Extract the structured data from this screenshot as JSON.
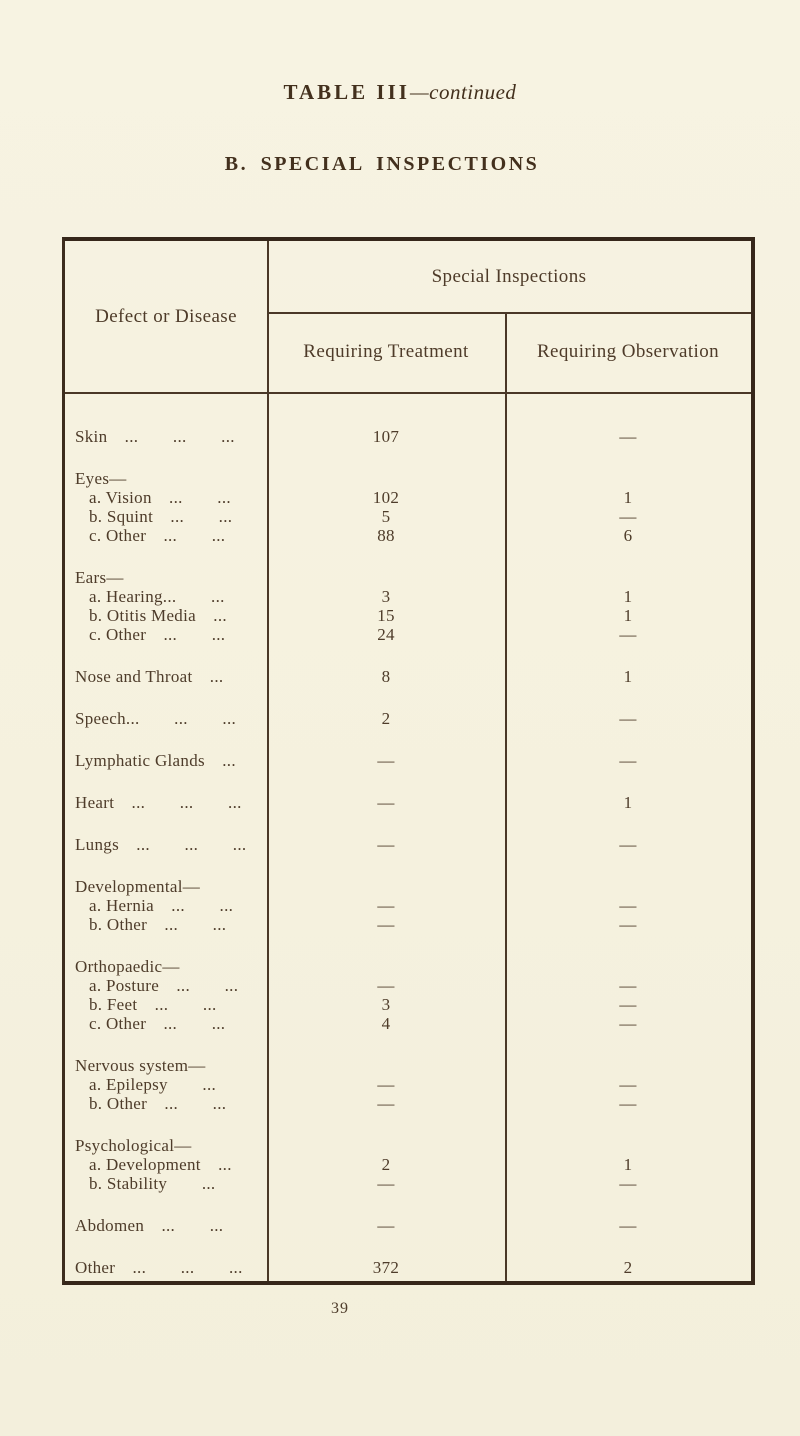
{
  "page": {
    "title_main": "TABLE III",
    "title_suffix": "—continued",
    "section_title": "B. SPECIAL INSPECTIONS",
    "page_number": "39"
  },
  "colors": {
    "paper": "#f6f2e0",
    "ink": "#4b3a28",
    "rule": "#4a3827"
  },
  "table": {
    "col1_header": "Defect or Disease",
    "group_header": "Special Inspections",
    "col2_header": "Requiring Treatment",
    "col3_header": "Requiring Observation",
    "rows": [
      {
        "label": "Skin ...  ...  ...",
        "treatment": "107",
        "observation": "—"
      },
      {
        "label": "Eyes—",
        "treatment": "",
        "observation": ""
      },
      {
        "label": "a. Vision ...  ...",
        "treatment": "102",
        "observation": "1"
      },
      {
        "label": "b. Squint ...  ...",
        "treatment": "5",
        "observation": "—"
      },
      {
        "label": "c. Other ...  ...",
        "treatment": "88",
        "observation": "6"
      },
      {
        "label": "Ears—",
        "treatment": "",
        "observation": ""
      },
      {
        "label": "a. Hearing...  ...",
        "treatment": "3",
        "observation": "1"
      },
      {
        "label": "b. Otitis Media ...",
        "treatment": "15",
        "observation": "1"
      },
      {
        "label": "c. Other ...  ...",
        "treatment": "24",
        "observation": "—"
      },
      {
        "label": "Nose and Throat ...",
        "treatment": "8",
        "observation": "1"
      },
      {
        "label": "Speech...  ...  ...",
        "treatment": "2",
        "observation": "—"
      },
      {
        "label": "Lymphatic Glands ...",
        "treatment": "—",
        "observation": "—"
      },
      {
        "label": "Heart ...  ...  ...",
        "treatment": "—",
        "observation": "1"
      },
      {
        "label": "Lungs ...  ...  ...",
        "treatment": "—",
        "observation": "—"
      },
      {
        "label": "Developmental—",
        "treatment": "",
        "observation": ""
      },
      {
        "label": "a. Hernia ...  ...",
        "treatment": "—",
        "observation": "—"
      },
      {
        "label": "b. Other ...  ...",
        "treatment": "—",
        "observation": "—"
      },
      {
        "label": "Orthopaedic—",
        "treatment": "",
        "observation": ""
      },
      {
        "label": "a. Posture ...  ...",
        "treatment": "—",
        "observation": "—"
      },
      {
        "label": "b. Feet ...  ...",
        "treatment": "3",
        "observation": "—"
      },
      {
        "label": "c. Other ...  ...",
        "treatment": "4",
        "observation": "—"
      },
      {
        "label": "Nervous system—",
        "treatment": "",
        "observation": ""
      },
      {
        "label": "a. Epilepsy  ...",
        "treatment": "—",
        "observation": "—"
      },
      {
        "label": "b. Other ...  ...",
        "treatment": "—",
        "observation": "—"
      },
      {
        "label": "Psychological—",
        "treatment": "",
        "observation": ""
      },
      {
        "label": "a. Development ...",
        "treatment": "2",
        "observation": "1"
      },
      {
        "label": "b. Stability  ...",
        "treatment": "—",
        "observation": "—"
      },
      {
        "label": "Abdomen ...  ...",
        "treatment": "—",
        "observation": "—"
      },
      {
        "label": "Other ...  ...  ...",
        "treatment": "372",
        "observation": "2"
      }
    ]
  }
}
